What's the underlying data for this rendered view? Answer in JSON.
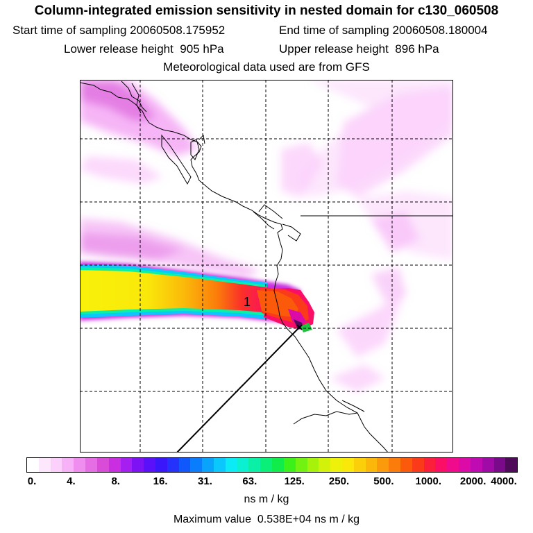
{
  "header": {
    "title": "Column-integrated emission sensitivity in nested domain for c130_060508",
    "start_label": "Start time of sampling",
    "start_value": "20060508.175952",
    "end_label": "End time of sampling",
    "end_value": "20060508.180004",
    "lower_label": "Lower release height",
    "lower_value": "905 hPa",
    "upper_label": "Upper release height",
    "upper_value": "896 hPa",
    "met": "Meteorological data used are from GFS"
  },
  "map": {
    "plume_label": "1",
    "release_marker": "×"
  },
  "colorbar": {
    "tick_labels": [
      "0.",
      "4.",
      "8.",
      "16.",
      "31.",
      "63.",
      "125.",
      "250.",
      "500.",
      "1000.",
      "2000.",
      "4000."
    ],
    "colors": [
      "#ffffff",
      "#fde7fd",
      "#fbd0fb",
      "#f7b2f7",
      "#f08ef0",
      "#e56ee5",
      "#d84cd8",
      "#c92fe0",
      "#a41ff0",
      "#7d12f5",
      "#5a10f8",
      "#3a16fa",
      "#2432fc",
      "#1058fc",
      "#0a7dfc",
      "#0aa3fc",
      "#0ac8fc",
      "#0aebf5",
      "#0af0d0",
      "#0af0a6",
      "#0aef78",
      "#10ec4a",
      "#3cf01a",
      "#72f210",
      "#a6f20a",
      "#d2f20a",
      "#eef20a",
      "#fae80a",
      "#fbd00a",
      "#fbb80a",
      "#fb9a0a",
      "#fb7c0a",
      "#fb5a0a",
      "#fb3a1a",
      "#fb1f3c",
      "#fb0f66",
      "#f00a8c",
      "#dc0aa6",
      "#c00ab2",
      "#a00aa6",
      "#7a0a8a",
      "#500a5a"
    ],
    "unit": "ns m / kg",
    "max_label": "Maximum value",
    "max_value": "0.538E+04 ns m / kg"
  }
}
